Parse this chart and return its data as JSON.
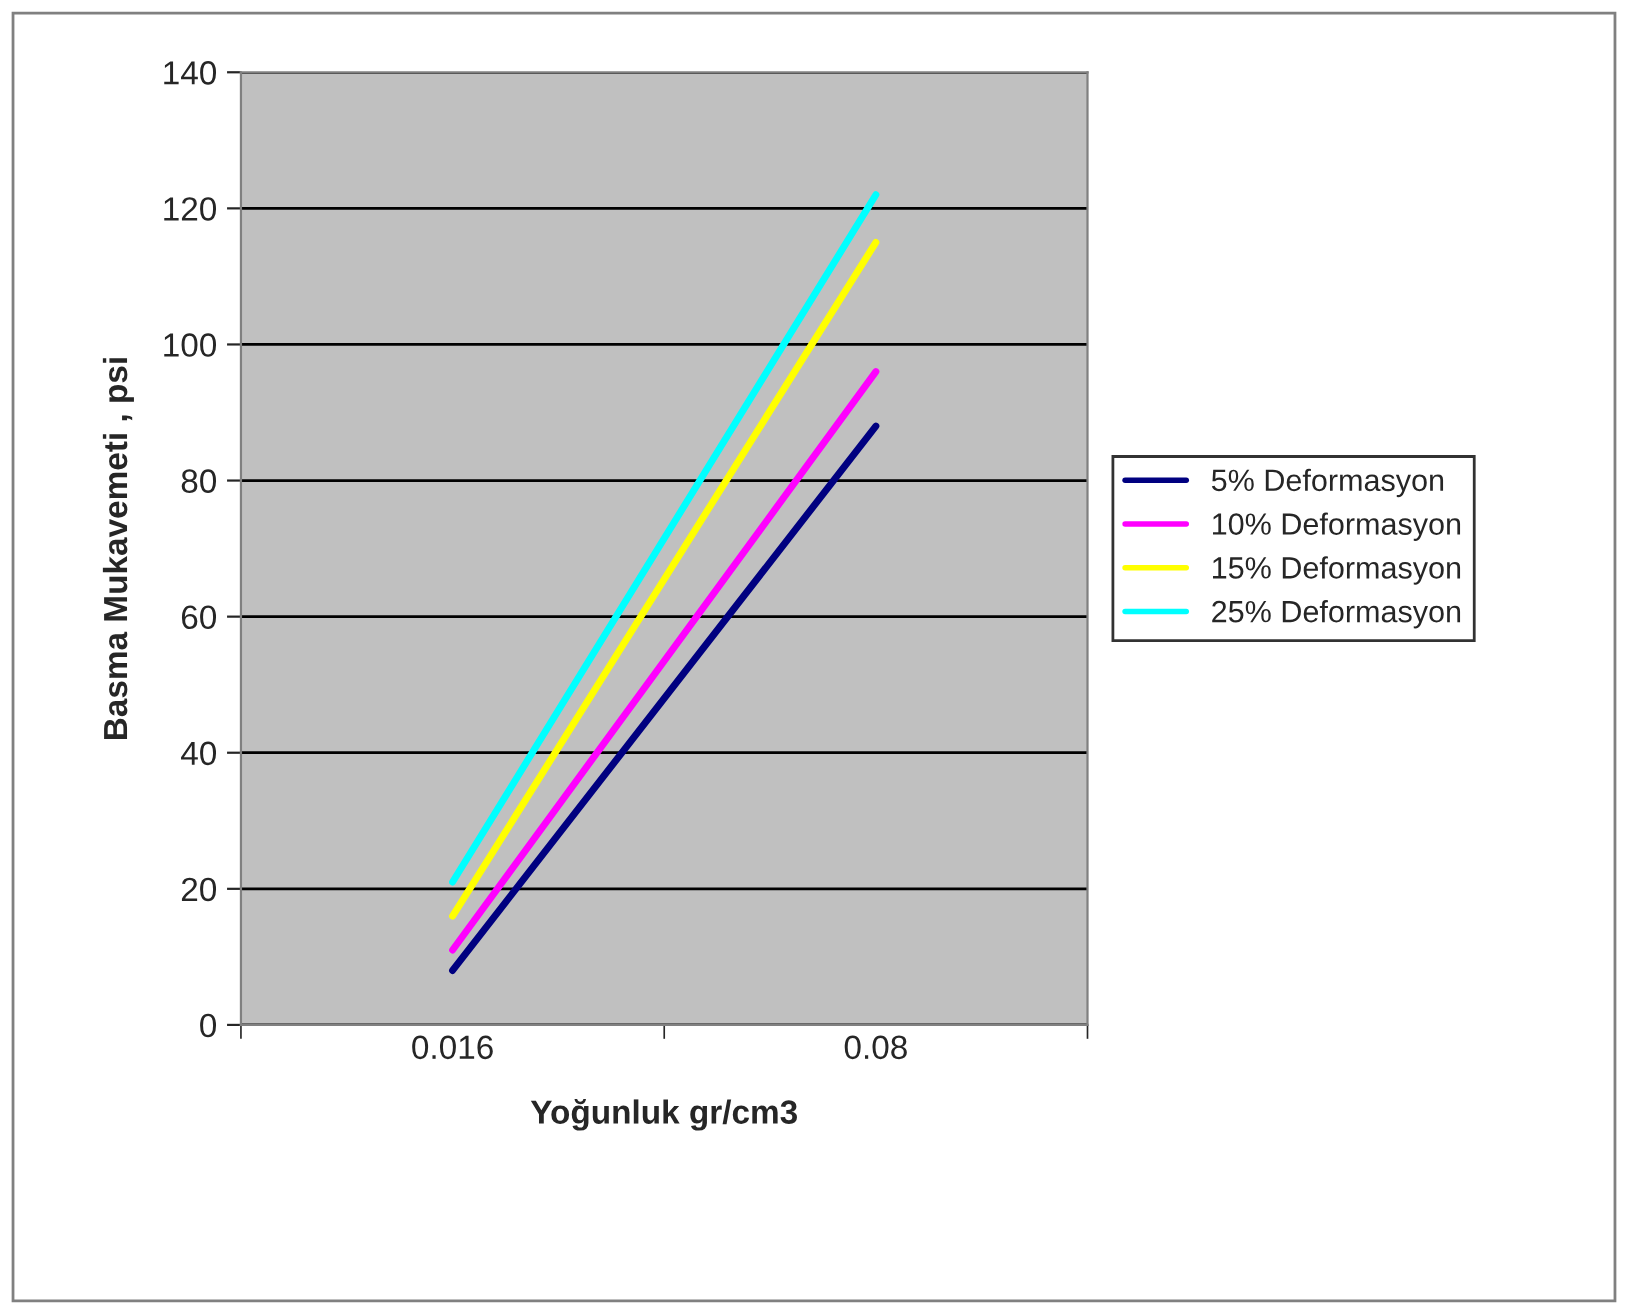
{
  "chart_data": {
    "type": "line",
    "xlabel": "Yoğunluk gr/cm3",
    "ylabel": "Basma Mukavemeti , psi",
    "categories": [
      "0.016",
      "0.08"
    ],
    "series": [
      {
        "name": "5% Deformasyon",
        "color": "#000080",
        "values": [
          8,
          88
        ]
      },
      {
        "name": "10% Deformasyon",
        "color": "#ff00ff",
        "values": [
          11,
          96
        ]
      },
      {
        "name": "15% Deformasyon",
        "color": "#ffff00",
        "values": [
          16,
          115
        ]
      },
      {
        "name": "25% Deformasyon",
        "color": "#00ffff",
        "values": [
          21,
          122
        ]
      }
    ],
    "ylim": [
      0,
      140
    ],
    "yticks": [
      0,
      20,
      40,
      60,
      80,
      100,
      120,
      140
    ],
    "grid": "y",
    "legend": "right",
    "marker": "none",
    "line_style": "solid"
  }
}
